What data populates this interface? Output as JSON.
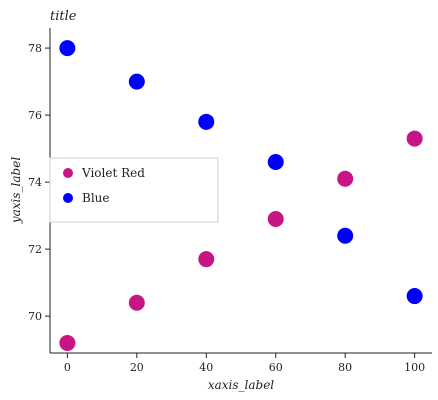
{
  "chart_data": {
    "type": "scatter",
    "title": "title",
    "xlabel": "xaxis_label",
    "ylabel": "yaxis_label",
    "xlim": [
      -5,
      105
    ],
    "ylim": [
      68.9,
      78.6
    ],
    "xticks": [
      0,
      20,
      40,
      60,
      80,
      100
    ],
    "yticks": [
      70,
      72,
      74,
      76,
      78
    ],
    "grid": false,
    "legend_position": "left",
    "series": [
      {
        "name": "Violet Red",
        "color": "#c71585",
        "x": [
          0,
          20,
          40,
          60,
          80,
          100
        ],
        "y": [
          69.2,
          70.4,
          71.7,
          72.9,
          74.1,
          75.3
        ]
      },
      {
        "name": "Blue",
        "color": "#0000ff",
        "x": [
          0,
          20,
          40,
          60,
          80,
          100
        ],
        "y": [
          78.0,
          77.0,
          75.8,
          74.6,
          72.4,
          70.6
        ]
      }
    ],
    "legend_order": [
      "Violet Red",
      "Blue"
    ]
  }
}
